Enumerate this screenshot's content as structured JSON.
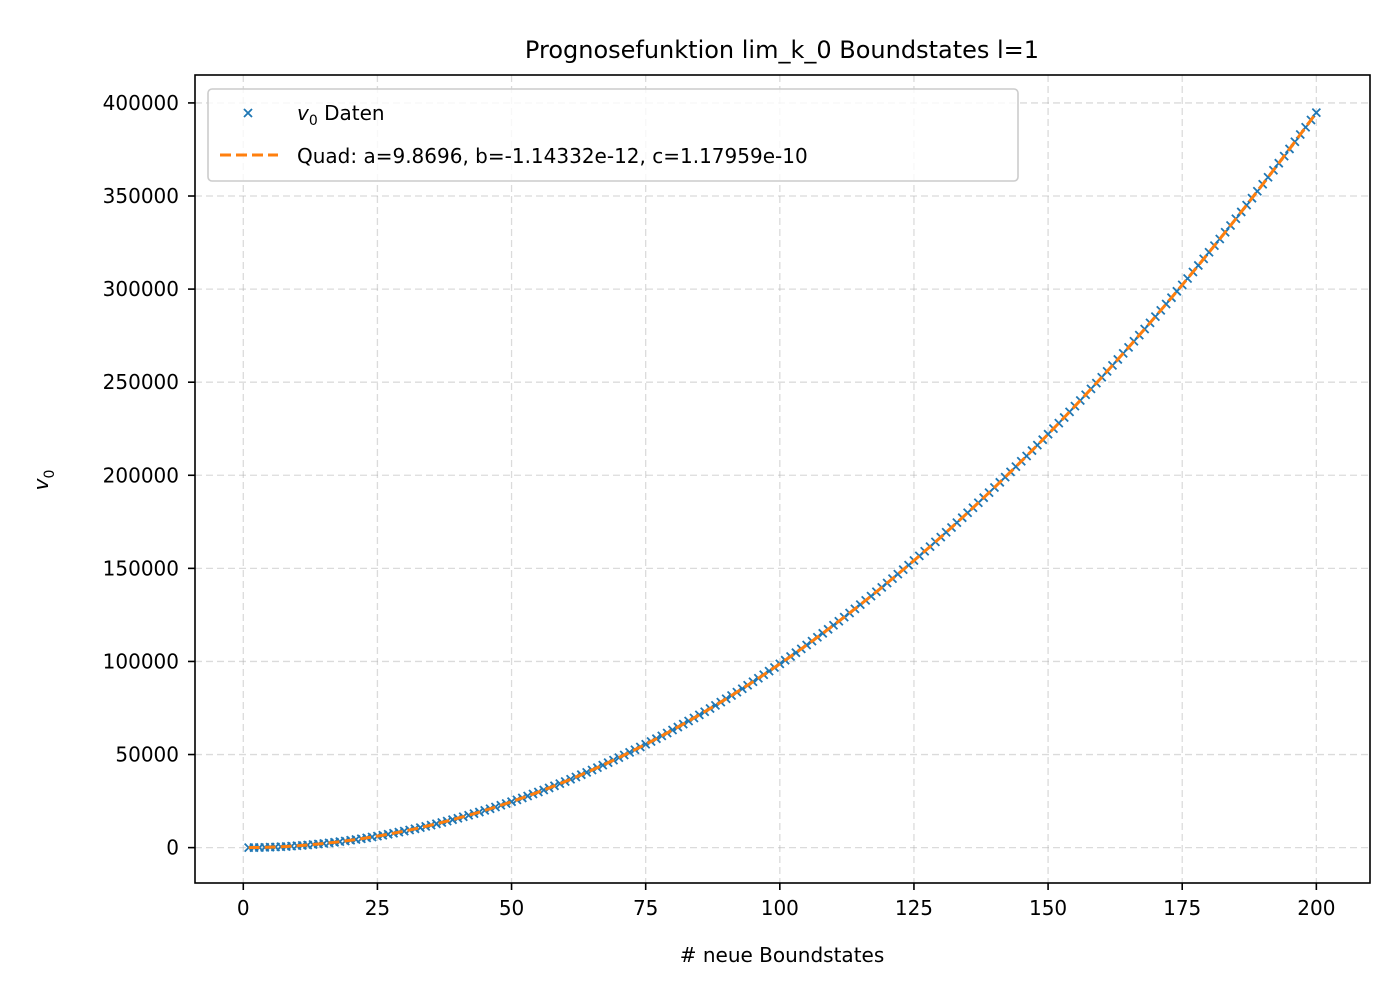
{
  "chart_data": {
    "type": "scatter",
    "title": "Prognosefunktion lim_k_0 Boundstates l=1",
    "xlabel": "# neue Boundstates",
    "ylabel_symbol": "v",
    "ylabel_subscript": "0",
    "xlim": [
      -9,
      210
    ],
    "ylim": [
      -19000,
      415000
    ],
    "xticks": [
      0,
      25,
      50,
      75,
      100,
      125,
      150,
      175,
      200
    ],
    "yticks": [
      0,
      50000,
      100000,
      150000,
      200000,
      250000,
      300000,
      350000,
      400000
    ],
    "grid": true,
    "legend_position": "upper-left",
    "series": [
      {
        "name_symbol": "v",
        "name_subscript": "0",
        "name_suffix": " Daten",
        "kind": "scatter",
        "marker": "x",
        "color": "#1f77b4",
        "x_start": 1,
        "x_end": 200,
        "x_step": 1,
        "formula": "a*x^2 + b*x + c"
      },
      {
        "name": "Quad: a=9.8696, b=-1.14332e-12, c=1.17959e-10",
        "kind": "line",
        "style": "dashed",
        "color": "#ff7f0e",
        "a": 9.8696,
        "b": -1.14332e-12,
        "c": 1.17959e-10
      }
    ]
  }
}
